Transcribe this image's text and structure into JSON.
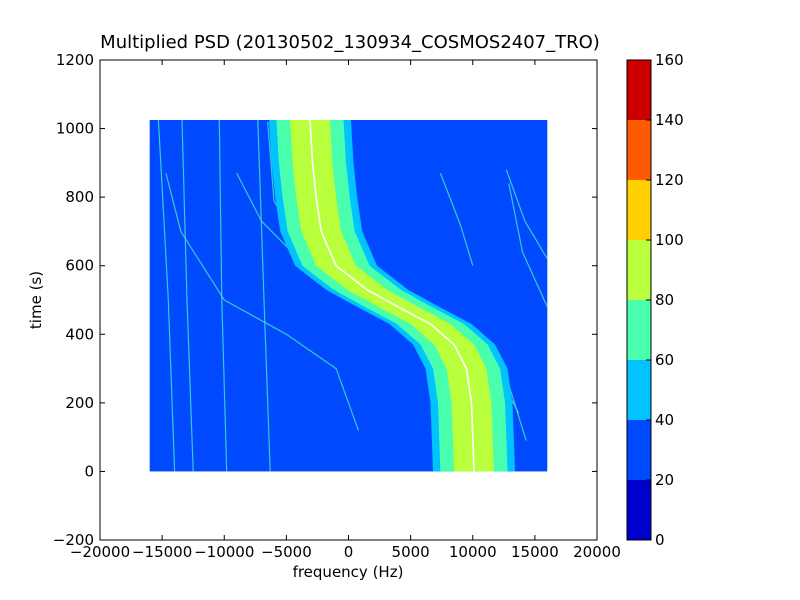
{
  "chart_data": {
    "type": "heatmap",
    "title": "Multiplied PSD (20130502_130934_COSMOS2407_TRO)",
    "xlabel": "frequency (Hz)",
    "ylabel": "time (s)",
    "xlim": [
      -20000,
      20000
    ],
    "ylim": [
      -200,
      1200
    ],
    "x_ticks": [
      "−20000",
      "−15000",
      "−10000",
      "−5000",
      "0",
      "5000",
      "10000",
      "15000",
      "20000"
    ],
    "x_tick_values": [
      -20000,
      -15000,
      -10000,
      -5000,
      0,
      5000,
      10000,
      15000,
      20000
    ],
    "y_ticks": [
      "−200",
      "0",
      "200",
      "400",
      "600",
      "800",
      "1000",
      "1200"
    ],
    "y_tick_values": [
      -200,
      0,
      200,
      400,
      600,
      800,
      1000,
      1200
    ],
    "data_extent": {
      "freq_min": -16000,
      "freq_max": 16000,
      "time_min": 0,
      "time_max": 1025
    },
    "background_level": 30,
    "main_doppler_trace": {
      "description_level": "peak band",
      "points": [
        {
          "time": 1025,
          "freq": -3100
        },
        {
          "time": 900,
          "freq": -2900
        },
        {
          "time": 800,
          "freq": -2600
        },
        {
          "time": 700,
          "freq": -2200
        },
        {
          "time": 600,
          "freq": -1000
        },
        {
          "time": 530,
          "freq": 1500
        },
        {
          "time": 480,
          "freq": 4000
        },
        {
          "time": 430,
          "freq": 6600
        },
        {
          "time": 370,
          "freq": 8500
        },
        {
          "time": 300,
          "freq": 9500
        },
        {
          "time": 200,
          "freq": 9900
        },
        {
          "time": 100,
          "freq": 10000
        },
        {
          "time": 0,
          "freq": 10100
        }
      ],
      "band_levels": [
        {
          "level": 50,
          "half_width": 3300
        },
        {
          "level": 70,
          "half_width": 2700
        },
        {
          "level": 90,
          "half_width": 1600
        }
      ]
    },
    "faint_traces": [
      [
        {
          "freq": -14700,
          "time": 870
        },
        {
          "freq": -13500,
          "time": 700
        },
        {
          "freq": -10000,
          "time": 500
        },
        {
          "freq": -5000,
          "time": 400
        },
        {
          "freq": -1000,
          "time": 300
        },
        {
          "freq": 800,
          "time": 120
        }
      ],
      [
        {
          "freq": -9000,
          "time": 870
        },
        {
          "freq": -7000,
          "time": 730
        },
        {
          "freq": -4000,
          "time": 620
        },
        {
          "freq": 2000,
          "time": 510
        },
        {
          "freq": 8500,
          "time": 420
        },
        {
          "freq": 12500,
          "time": 300
        },
        {
          "freq": 14300,
          "time": 90
        }
      ],
      [
        {
          "freq": -6500,
          "time": 1020
        },
        {
          "freq": -6000,
          "time": 790
        },
        {
          "freq": -4000,
          "time": 660
        },
        {
          "freq": 1000,
          "time": 530
        },
        {
          "freq": 8000,
          "time": 440
        },
        {
          "freq": 11800,
          "time": 300
        },
        {
          "freq": 13700,
          "time": 170
        }
      ],
      [
        {
          "freq": 7400,
          "time": 870
        },
        {
          "freq": 9000,
          "time": 720
        },
        {
          "freq": 10000,
          "time": 600
        }
      ],
      [
        {
          "freq": 12700,
          "time": 880
        },
        {
          "freq": 14200,
          "time": 730
        },
        {
          "freq": 16000,
          "time": 620
        }
      ],
      [
        {
          "freq": 12900,
          "time": 840
        },
        {
          "freq": 14000,
          "time": 640
        },
        {
          "freq": 16000,
          "time": 480
        }
      ],
      [
        {
          "freq": -15300,
          "time": 1025
        },
        {
          "freq": -14500,
          "time": 500
        },
        {
          "freq": -14000,
          "time": 0
        }
      ],
      [
        {
          "freq": -13400,
          "time": 1025
        },
        {
          "freq": -13000,
          "time": 500
        },
        {
          "freq": -12500,
          "time": 0
        }
      ],
      [
        {
          "freq": -10400,
          "time": 1025
        },
        {
          "freq": -10200,
          "time": 500
        },
        {
          "freq": -9800,
          "time": 0
        }
      ],
      [
        {
          "freq": -7300,
          "time": 1025
        },
        {
          "freq": -6800,
          "time": 500
        },
        {
          "freq": -6300,
          "time": 0
        }
      ]
    ],
    "colorbar": {
      "ticks": [
        "0",
        "20",
        "40",
        "60",
        "80",
        "100",
        "120",
        "140",
        "160"
      ],
      "min": 0,
      "max": 160,
      "bins": [
        {
          "from": 0,
          "to": 20,
          "color": "#0000cd"
        },
        {
          "from": 20,
          "to": 40,
          "color": "#0049ff"
        },
        {
          "from": 40,
          "to": 60,
          "color": "#00c3ff"
        },
        {
          "from": 60,
          "to": 80,
          "color": "#49ffad"
        },
        {
          "from": 80,
          "to": 100,
          "color": "#b9ff3b"
        },
        {
          "from": 100,
          "to": 120,
          "color": "#ffd000"
        },
        {
          "from": 120,
          "to": 140,
          "color": "#ff5a00"
        },
        {
          "from": 140,
          "to": 160,
          "color": "#cd0000"
        }
      ]
    },
    "grid": false,
    "legend": "none"
  }
}
